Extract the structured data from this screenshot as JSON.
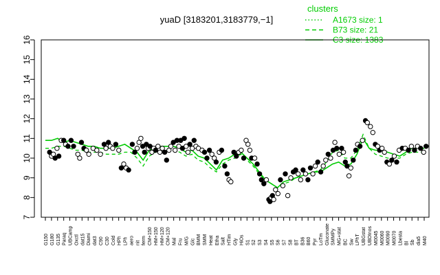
{
  "chart_data": {
    "type": "line",
    "title": "yuaD [3183201,3183779,−1]",
    "xlabel": "",
    "ylabel": "",
    "ylim": [
      7,
      16
    ],
    "yticks": [
      7,
      8,
      9,
      10,
      11,
      12,
      13,
      14,
      15,
      16
    ],
    "grid": false,
    "legend": {
      "title": "clusters",
      "placement": "top-right",
      "color": "#00cc00",
      "entries": [
        {
          "label": "A1673 size: 1",
          "style": "dotted"
        },
        {
          "label": "B73 size: 21",
          "style": "dashed"
        },
        {
          "label": "C3 size: 1383",
          "style": "solid"
        }
      ]
    },
    "x_tick_labels": [
      "G150",
      "G180",
      "G135",
      "Paraq",
      "UBCamp",
      "Oxctl",
      "dat15",
      "Diami",
      "dat3",
      "C90",
      "C30",
      "Cold",
      "HPh",
      "LPh",
      "aero",
      "nit",
      "ferm",
      "CM+150",
      "HM+150",
      "HM+120",
      "CM+120",
      "Mal",
      "Fru",
      "M/G",
      "Glc",
      "BMM",
      "SMM",
      "Heat",
      "Etha",
      "Salt",
      "HTim",
      "Gly",
      "HiOs",
      "S1",
      "S2",
      "S3",
      "S4",
      "S5",
      "S6",
      "S7",
      "S8",
      "BT",
      "B36",
      "B60",
      "Pyr",
      "LoTm",
      "Gluconate",
      "SMMPy",
      "MG+stat",
      "BC",
      "Sw",
      "LPhT",
      "UBGstat",
      "UBDInos",
      "M0045",
      "M0060",
      "M0090",
      "M0070",
      "Lbesta",
      "Bl",
      "Sb",
      "dia5",
      "M40"
    ],
    "series": [
      {
        "type": "line",
        "color": "#00cc00",
        "style": "solid",
        "values": [
          10.9,
          10.9,
          11.0,
          10.8,
          10.9,
          10.8,
          10.7,
          10.6,
          10.6,
          10.5,
          10.5,
          10.5,
          10.6,
          10.7,
          10.5,
          10.3,
          9.9,
          10.4,
          10.5,
          10.6,
          10.6,
          10.6,
          10.5,
          10.3,
          10.4,
          10.1,
          10.0,
          9.7,
          9.4,
          9.9,
          10.0,
          10.2,
          10.3,
          10.0,
          9.7,
          9.3,
          8.9,
          8.7,
          8.5,
          8.8,
          8.9,
          9.0,
          9.1,
          9.2,
          9.3,
          9.3,
          9.5,
          9.7,
          9.8,
          9.6,
          9.7,
          10.2,
          11.0,
          10.5,
          10.4,
          10.4,
          10.3,
          10.2,
          10.1,
          10.3,
          10.5,
          10.5,
          10.5
        ]
      },
      {
        "type": "line",
        "color": "#00cc00",
        "style": "dashed",
        "values": [
          10.5,
          10.5,
          10.6,
          10.6,
          10.5,
          10.4,
          10.4,
          10.3,
          10.3,
          10.3,
          10.2,
          10.2,
          10.2,
          10.3,
          10.3,
          10.0,
          9.6,
          10.1,
          10.3,
          10.4,
          10.4,
          10.4,
          10.3,
          10.1,
          10.2,
          9.9,
          9.8,
          9.5,
          9.3,
          9.7,
          9.9,
          10.0,
          10.2,
          9.9,
          9.6,
          9.2,
          8.9,
          8.7,
          8.5,
          8.7,
          8.8,
          9.0,
          9.1,
          9.2,
          9.3,
          9.4,
          9.8,
          10.3,
          10.4,
          10.0,
          10.0,
          10.4,
          11.2,
          10.5,
          10.2,
          10.1,
          10.0,
          10.0,
          10.0,
          10.2,
          10.3,
          10.3,
          10.3
        ]
      },
      {
        "type": "scatter",
        "color": "#000000",
        "name": "",
        "values": [
          10.3,
          10.0,
          10.5,
          10.8,
          10.9,
          10.7,
          10.2,
          10.5,
          10.3,
          10.5,
          10.4,
          10.6,
          10.8,
          10.6,
          10.4,
          9.6,
          9.4,
          10.7,
          10.8,
          10.6,
          10.7,
          10.5,
          10.4,
          10.1,
          10.2,
          9.9,
          9.6,
          9.3,
          8.9,
          10.4,
          10.2,
          10.3,
          10.8,
          9.9,
          9.6,
          9.1,
          8.8,
          8.4,
          7.9,
          8.3,
          8.7,
          9.1,
          9.3,
          9.2,
          9.0,
          9.2,
          9.9,
          10.4,
          10.3,
          9.8,
          10.0,
          10.6,
          11.8,
          11.3,
          10.5,
          10.4,
          10.2,
          9.8,
          9.9,
          10.4,
          10.5,
          10.5,
          10.5
        ]
      }
    ],
    "points": [
      {
        "x": 0.7,
        "y": 10.3,
        "f": "k"
      },
      {
        "x": 1.0,
        "y": 10.1,
        "f": "w"
      },
      {
        "x": 1.3,
        "y": 10.2,
        "f": "w"
      },
      {
        "x": 1.6,
        "y": 10.0,
        "f": "k"
      },
      {
        "x": 1.9,
        "y": 10.5,
        "f": "w"
      },
      {
        "x": 2.2,
        "y": 10.1,
        "f": "k"
      },
      {
        "x": 2.6,
        "y": 10.9,
        "f": "w"
      },
      {
        "x": 3.0,
        "y": 10.9,
        "f": "k"
      },
      {
        "x": 3.3,
        "y": 10.7,
        "f": "w"
      },
      {
        "x": 3.7,
        "y": 10.6,
        "f": "k"
      },
      {
        "x": 4.2,
        "y": 10.9,
        "f": "k"
      },
      {
        "x": 4.6,
        "y": 10.6,
        "f": "k"
      },
      {
        "x": 5.3,
        "y": 10.2,
        "f": "w"
      },
      {
        "x": 5.6,
        "y": 10.0,
        "f": "w"
      },
      {
        "x": 5.9,
        "y": 10.8,
        "f": "k"
      },
      {
        "x": 6.3,
        "y": 10.5,
        "f": "k"
      },
      {
        "x": 6.7,
        "y": 10.4,
        "f": "w"
      },
      {
        "x": 7.1,
        "y": 10.2,
        "f": "w"
      },
      {
        "x": 7.8,
        "y": 10.5,
        "f": "w"
      },
      {
        "x": 8.4,
        "y": 10.4,
        "f": "w"
      },
      {
        "x": 9.0,
        "y": 10.2,
        "f": "w"
      },
      {
        "x": 9.6,
        "y": 10.7,
        "f": "k"
      },
      {
        "x": 9.9,
        "y": 10.5,
        "f": "w"
      },
      {
        "x": 10.3,
        "y": 10.8,
        "f": "k"
      },
      {
        "x": 10.6,
        "y": 10.6,
        "f": "w"
      },
      {
        "x": 11.0,
        "y": 10.5,
        "f": "w"
      },
      {
        "x": 11.5,
        "y": 10.7,
        "f": "k"
      },
      {
        "x": 12.0,
        "y": 10.4,
        "f": "w"
      },
      {
        "x": 12.4,
        "y": 9.5,
        "f": "k"
      },
      {
        "x": 12.8,
        "y": 9.7,
        "f": "w"
      },
      {
        "x": 13.2,
        "y": 9.5,
        "f": "w"
      },
      {
        "x": 13.6,
        "y": 9.4,
        "f": "k"
      },
      {
        "x": 14.2,
        "y": 10.7,
        "f": "k"
      },
      {
        "x": 14.6,
        "y": 10.3,
        "f": "k"
      },
      {
        "x": 15.0,
        "y": 10.5,
        "f": "w"
      },
      {
        "x": 15.3,
        "y": 10.8,
        "f": "w"
      },
      {
        "x": 15.6,
        "y": 11.0,
        "f": "w"
      },
      {
        "x": 15.9,
        "y": 10.6,
        "f": "k"
      },
      {
        "x": 16.2,
        "y": 10.3,
        "f": "k"
      },
      {
        "x": 16.5,
        "y": 10.7,
        "f": "k"
      },
      {
        "x": 16.8,
        "y": 10.5,
        "f": "w"
      },
      {
        "x": 17.1,
        "y": 10.6,
        "f": "k"
      },
      {
        "x": 17.4,
        "y": 10.3,
        "f": "w"
      },
      {
        "x": 17.7,
        "y": 10.5,
        "f": "w"
      },
      {
        "x": 18.0,
        "y": 10.4,
        "f": "k"
      },
      {
        "x": 18.4,
        "y": 10.6,
        "f": "w"
      },
      {
        "x": 18.7,
        "y": 10.3,
        "f": "w"
      },
      {
        "x": 19.1,
        "y": 10.5,
        "f": "w"
      },
      {
        "x": 19.5,
        "y": 10.3,
        "f": "k"
      },
      {
        "x": 19.8,
        "y": 9.9,
        "f": "k"
      },
      {
        "x": 20.2,
        "y": 10.4,
        "f": "w"
      },
      {
        "x": 20.5,
        "y": 10.6,
        "f": "w"
      },
      {
        "x": 20.9,
        "y": 10.8,
        "f": "k"
      },
      {
        "x": 21.2,
        "y": 10.4,
        "f": "w"
      },
      {
        "x": 21.5,
        "y": 10.9,
        "f": "k"
      },
      {
        "x": 21.8,
        "y": 10.6,
        "f": "w"
      },
      {
        "x": 22.1,
        "y": 10.9,
        "f": "k"
      },
      {
        "x": 22.4,
        "y": 10.5,
        "f": "k"
      },
      {
        "x": 22.7,
        "y": 11.0,
        "f": "k"
      },
      {
        "x": 23.0,
        "y": 10.6,
        "f": "w"
      },
      {
        "x": 23.3,
        "y": 10.3,
        "f": "w"
      },
      {
        "x": 23.6,
        "y": 10.7,
        "f": "k"
      },
      {
        "x": 24.0,
        "y": 10.5,
        "f": "w"
      },
      {
        "x": 24.3,
        "y": 10.9,
        "f": "k"
      },
      {
        "x": 24.6,
        "y": 10.6,
        "f": "w"
      },
      {
        "x": 25.0,
        "y": 10.5,
        "f": "w"
      },
      {
        "x": 25.6,
        "y": 10.4,
        "f": "w"
      },
      {
        "x": 26.0,
        "y": 10.3,
        "f": "k"
      },
      {
        "x": 26.4,
        "y": 10.0,
        "f": "k"
      },
      {
        "x": 26.8,
        "y": 10.4,
        "f": "k"
      },
      {
        "x": 27.2,
        "y": 10.2,
        "f": "w"
      },
      {
        "x": 27.6,
        "y": 10.0,
        "f": "w"
      },
      {
        "x": 27.9,
        "y": 9.8,
        "f": "k"
      },
      {
        "x": 28.4,
        "y": 10.3,
        "f": "w"
      },
      {
        "x": 28.8,
        "y": 10.4,
        "f": "k"
      },
      {
        "x": 29.3,
        "y": 9.6,
        "f": "k"
      },
      {
        "x": 29.7,
        "y": 9.2,
        "f": "k"
      },
      {
        "x": 30.0,
        "y": 8.9,
        "f": "w"
      },
      {
        "x": 30.3,
        "y": 8.8,
        "f": "w"
      },
      {
        "x": 30.8,
        "y": 10.3,
        "f": "k"
      },
      {
        "x": 31.2,
        "y": 10.1,
        "f": "k"
      },
      {
        "x": 31.6,
        "y": 10.3,
        "f": "w"
      },
      {
        "x": 32.0,
        "y": 10.4,
        "f": "w"
      },
      {
        "x": 32.4,
        "y": 10.0,
        "f": "k"
      },
      {
        "x": 32.8,
        "y": 10.9,
        "f": "w"
      },
      {
        "x": 33.1,
        "y": 10.7,
        "f": "w"
      },
      {
        "x": 33.4,
        "y": 10.4,
        "f": "w"
      },
      {
        "x": 33.7,
        "y": 10.0,
        "f": "k"
      },
      {
        "x": 34.2,
        "y": 10.0,
        "f": "w"
      },
      {
        "x": 34.6,
        "y": 9.7,
        "f": "k"
      },
      {
        "x": 35.0,
        "y": 9.2,
        "f": "k"
      },
      {
        "x": 35.3,
        "y": 8.9,
        "f": "k"
      },
      {
        "x": 35.7,
        "y": 8.7,
        "f": "k"
      },
      {
        "x": 36.1,
        "y": 8.9,
        "f": "w"
      },
      {
        "x": 36.5,
        "y": 7.9,
        "f": "k"
      },
      {
        "x": 36.7,
        "y": 7.8,
        "f": "k"
      },
      {
        "x": 36.9,
        "y": 8.0,
        "f": "w"
      },
      {
        "x": 37.1,
        "y": 8.1,
        "f": "k"
      },
      {
        "x": 37.3,
        "y": 7.9,
        "f": "w"
      },
      {
        "x": 37.6,
        "y": 8.4,
        "f": "w"
      },
      {
        "x": 38.0,
        "y": 8.2,
        "f": "w"
      },
      {
        "x": 38.4,
        "y": 8.9,
        "f": "k"
      },
      {
        "x": 38.8,
        "y": 8.6,
        "f": "w"
      },
      {
        "x": 39.2,
        "y": 9.2,
        "f": "k"
      },
      {
        "x": 39.6,
        "y": 8.1,
        "f": "w"
      },
      {
        "x": 40.1,
        "y": 9.0,
        "f": "w"
      },
      {
        "x": 40.5,
        "y": 9.3,
        "f": "k"
      },
      {
        "x": 40.9,
        "y": 9.4,
        "f": "k"
      },
      {
        "x": 41.3,
        "y": 9.2,
        "f": "w"
      },
      {
        "x": 41.7,
        "y": 8.9,
        "f": "w"
      },
      {
        "x": 42.1,
        "y": 9.4,
        "f": "k"
      },
      {
        "x": 42.5,
        "y": 9.2,
        "f": "w"
      },
      {
        "x": 42.9,
        "y": 8.9,
        "f": "k"
      },
      {
        "x": 43.3,
        "y": 9.5,
        "f": "k"
      },
      {
        "x": 43.7,
        "y": 9.2,
        "f": "w"
      },
      {
        "x": 44.1,
        "y": 9.6,
        "f": "w"
      },
      {
        "x": 44.5,
        "y": 9.8,
        "f": "k"
      },
      {
        "x": 45.0,
        "y": 9.3,
        "f": "k"
      },
      {
        "x": 45.4,
        "y": 9.6,
        "f": "w"
      },
      {
        "x": 45.8,
        "y": 9.9,
        "f": "w"
      },
      {
        "x": 46.2,
        "y": 10.2,
        "f": "k"
      },
      {
        "x": 46.6,
        "y": 10.0,
        "f": "w"
      },
      {
        "x": 47.0,
        "y": 10.4,
        "f": "k"
      },
      {
        "x": 47.3,
        "y": 10.8,
        "f": "w"
      },
      {
        "x": 47.6,
        "y": 10.5,
        "f": "k"
      },
      {
        "x": 48.0,
        "y": 10.2,
        "f": "w"
      },
      {
        "x": 48.4,
        "y": 10.5,
        "f": "k"
      },
      {
        "x": 48.7,
        "y": 10.3,
        "f": "w"
      },
      {
        "x": 49.0,
        "y": 9.8,
        "f": "k"
      },
      {
        "x": 49.3,
        "y": 9.6,
        "f": "k"
      },
      {
        "x": 49.6,
        "y": 9.1,
        "f": "w"
      },
      {
        "x": 49.9,
        "y": 9.5,
        "f": "w"
      },
      {
        "x": 50.3,
        "y": 9.9,
        "f": "k"
      },
      {
        "x": 50.7,
        "y": 10.4,
        "f": "k"
      },
      {
        "x": 51.0,
        "y": 10.7,
        "f": "w"
      },
      {
        "x": 51.4,
        "y": 10.6,
        "f": "k"
      },
      {
        "x": 51.8,
        "y": 10.9,
        "f": "w"
      },
      {
        "x": 52.3,
        "y": 11.9,
        "f": "k"
      },
      {
        "x": 52.6,
        "y": 11.8,
        "f": "w"
      },
      {
        "x": 53.1,
        "y": 11.6,
        "f": "w"
      },
      {
        "x": 53.5,
        "y": 11.3,
        "f": "w"
      },
      {
        "x": 53.9,
        "y": 10.7,
        "f": "k"
      },
      {
        "x": 54.3,
        "y": 10.6,
        "f": "w"
      },
      {
        "x": 54.6,
        "y": 10.4,
        "f": "k"
      },
      {
        "x": 55.0,
        "y": 10.5,
        "f": "w"
      },
      {
        "x": 55.4,
        "y": 10.3,
        "f": "w"
      },
      {
        "x": 55.8,
        "y": 9.8,
        "f": "k"
      },
      {
        "x": 56.2,
        "y": 9.7,
        "f": "w"
      },
      {
        "x": 56.6,
        "y": 9.9,
        "f": "k"
      },
      {
        "x": 57.0,
        "y": 10.1,
        "f": "w"
      },
      {
        "x": 57.4,
        "y": 9.8,
        "f": "k"
      },
      {
        "x": 57.8,
        "y": 10.4,
        "f": "w"
      },
      {
        "x": 58.3,
        "y": 10.5,
        "f": "k"
      },
      {
        "x": 58.8,
        "y": 10.5,
        "f": "w"
      },
      {
        "x": 59.3,
        "y": 10.4,
        "f": "k"
      },
      {
        "x": 59.8,
        "y": 10.6,
        "f": "w"
      },
      {
        "x": 60.3,
        "y": 10.4,
        "f": "k"
      },
      {
        "x": 60.8,
        "y": 10.6,
        "f": "w"
      },
      {
        "x": 61.3,
        "y": 10.5,
        "f": "k"
      },
      {
        "x": 61.8,
        "y": 10.3,
        "f": "w"
      },
      {
        "x": 62.2,
        "y": 10.6,
        "f": "k"
      }
    ]
  }
}
